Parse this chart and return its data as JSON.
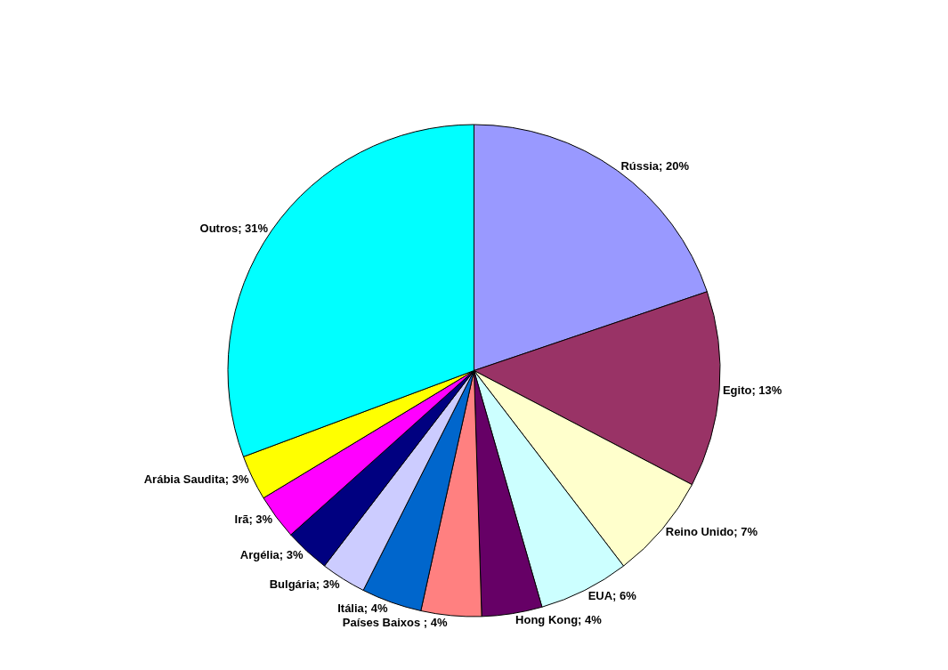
{
  "chart_data": {
    "type": "pie",
    "categories": [
      "Rússia",
      "Egito",
      "Reino Unido",
      "EUA",
      "Hong Kong",
      "Países Baixos ",
      "Itália",
      "Bulgária",
      "Argélia",
      "Irã",
      "Arábia Saudita",
      "Outros"
    ],
    "values": [
      20,
      13,
      7,
      6,
      4,
      4,
      4,
      3,
      3,
      3,
      3,
      31
    ],
    "value_labels": [
      "20%",
      "13%",
      "7%",
      "6%",
      "4%",
      "4%",
      "4%",
      "3%",
      "3%",
      "3%",
      "3%",
      "31%"
    ],
    "colors": [
      "#9999ff",
      "#993366",
      "#ffffcc",
      "#ccffff",
      "#660066",
      "#ff8080",
      "#0066cc",
      "#ccccff",
      "#000080",
      "#ff00ff",
      "#ffff00",
      "#00ffff"
    ],
    "legend": false
  }
}
